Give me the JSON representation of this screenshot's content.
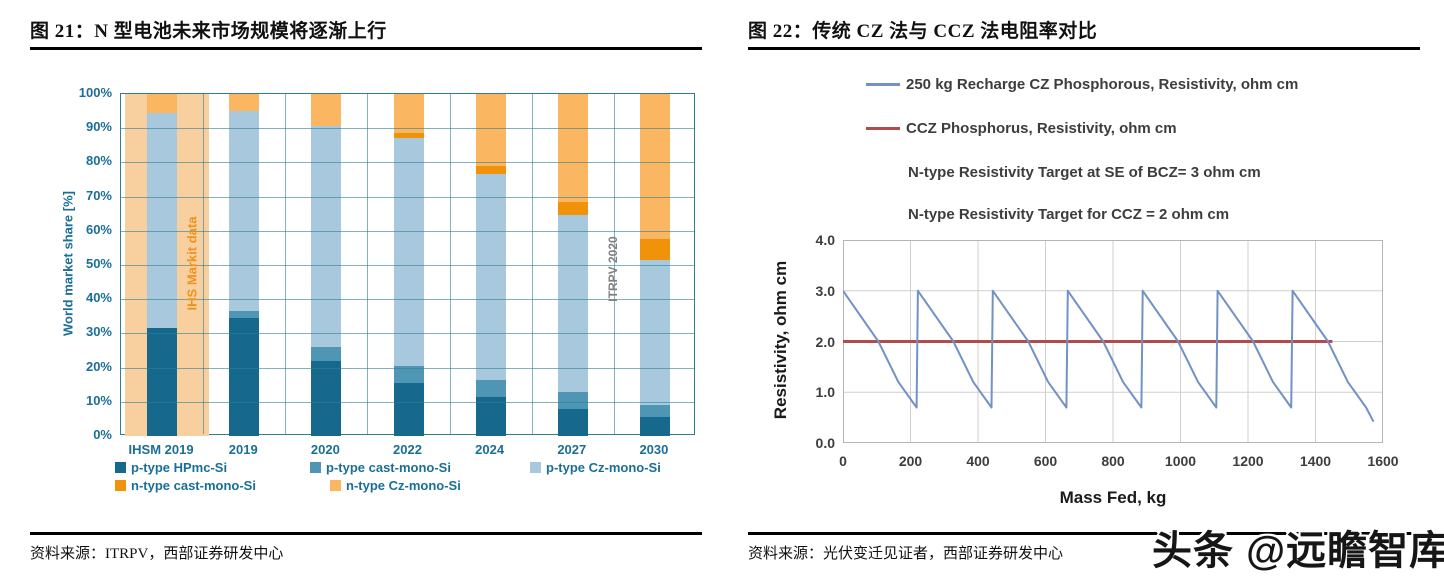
{
  "watermark": "头条 @远瞻智库",
  "chart_data": [
    {
      "type": "bar",
      "stacked": true,
      "title": "图 21：N 型电池未来市场规模将逐渐上行",
      "source": "资料来源：ITRPV，西部证券研发中心",
      "ylabel": "World market share [%]",
      "ylim": [
        0,
        100
      ],
      "grid": true,
      "legend_position": "bottom",
      "y_tick_labels": [
        "0%",
        "10%",
        "20%",
        "30%",
        "40%",
        "50%",
        "60%",
        "70%",
        "80%",
        "90%",
        "100%"
      ],
      "categories": [
        "IHSM 2019",
        "2019",
        "2020",
        "2022",
        "2024",
        "2027",
        "2030"
      ],
      "series": [
        {
          "name": "p-type HPmc-Si",
          "color": "#16688d",
          "values": [
            31.5,
            34.5,
            22,
            15.5,
            11.5,
            8,
            5.5
          ]
        },
        {
          "name": "p-type cast-mono-Si",
          "color": "#4e96b4",
          "values": [
            0,
            2,
            4,
            5,
            5,
            5,
            3.5
          ]
        },
        {
          "name": "p-type Cz-mono-Si",
          "color": "#a8c9dd",
          "values": [
            63,
            58.5,
            64.5,
            66.5,
            60,
            51.5,
            42.5
          ]
        },
        {
          "name": "n-type cast-mono-Si",
          "color": "#f0920a",
          "values": [
            0,
            0,
            0,
            1.5,
            2.5,
            4,
            6
          ]
        },
        {
          "name": "n-type Cz-mono-Si",
          "color": "#fbb661",
          "values": [
            5.5,
            5,
            9.5,
            11.5,
            21,
            31.5,
            42.5
          ]
        }
      ],
      "annotations": [
        {
          "text": "IHS Markit data",
          "color": "#ef9220",
          "orientation": "vertical",
          "position": "over-first-category"
        },
        {
          "text": "ITRPV 2020",
          "color": "#7f7f7f",
          "orientation": "vertical",
          "position": "left-of-2030"
        }
      ],
      "band_color": "#f8d0a0"
    },
    {
      "type": "line",
      "title": "图 22：传统 CZ 法与 CCZ 法电阻率对比",
      "source": "资料来源：光伏变迁见证者，西部证券研发中心",
      "xlabel": "Mass Fed, kg",
      "ylabel": "Resistivity, ohm cm",
      "xlim": [
        0,
        1600
      ],
      "ylim": [
        0,
        4.0
      ],
      "grid": true,
      "legend_position": "top",
      "x_tick_labels": [
        "0",
        "200",
        "400",
        "600",
        "800",
        "1000",
        "1200",
        "1400",
        "1600"
      ],
      "y_tick_labels": [
        "0.0",
        "1.0",
        "2.0",
        "3.0",
        "4.0"
      ],
      "notes": [
        "N-type Resistivity Target at SE of BCZ=  3  ohm cm",
        "N-type Resistivity Target for CCZ =  2  ohm cm"
      ],
      "series": [
        {
          "name": "250 kg Recharge CZ Phosphorous, Resistivity, ohm cm",
          "color": "#7292c5",
          "points": [
            [
              0,
              3.0
            ],
            [
              105,
              2.0
            ],
            [
              164,
              1.2
            ],
            [
              218,
              0.7
            ],
            [
              222,
              3.0
            ],
            [
              327,
              2.0
            ],
            [
              386,
              1.2
            ],
            [
              440,
              0.7
            ],
            [
              444,
              3.0
            ],
            [
              549,
              2.0
            ],
            [
              608,
              1.2
            ],
            [
              662,
              0.7
            ],
            [
              666,
              3.0
            ],
            [
              771,
              2.0
            ],
            [
              830,
              1.2
            ],
            [
              884,
              0.7
            ],
            [
              888,
              3.0
            ],
            [
              993,
              2.0
            ],
            [
              1052,
              1.2
            ],
            [
              1106,
              0.7
            ],
            [
              1110,
              3.0
            ],
            [
              1215,
              2.0
            ],
            [
              1274,
              1.2
            ],
            [
              1328,
              0.7
            ],
            [
              1332,
              3.0
            ],
            [
              1437,
              2.0
            ],
            [
              1496,
              1.2
            ],
            [
              1550,
              0.7
            ],
            [
              1572,
              0.42
            ]
          ]
        },
        {
          "name": "CCZ Phosphorus, Resistivity, ohm cm",
          "color": "#b04c4c",
          "points": [
            [
              0,
              2.0
            ],
            [
              1450,
              2.0
            ]
          ]
        }
      ],
      "grid_color": "#cfcfcf",
      "border_color": "#b5b5b5"
    }
  ]
}
